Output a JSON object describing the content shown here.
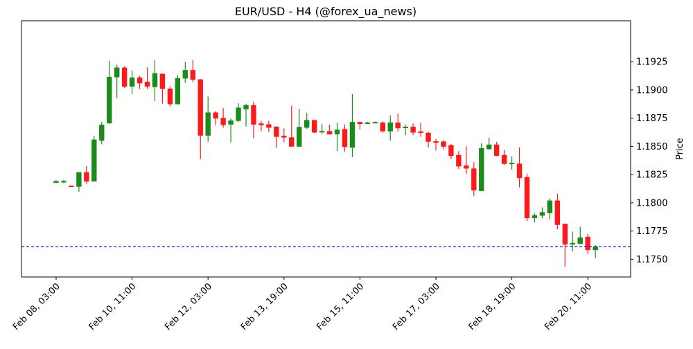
{
  "chart_data": {
    "type": "candlestick",
    "title": "EUR/USD - H4 (@forex_ua_news)",
    "xlabel": "",
    "ylabel": "Price",
    "ylim": [
      1.17343,
      1.19613
    ],
    "grid": false,
    "colors": {
      "up": "#1a8c1a",
      "down": "#ff1a1a",
      "reference_line": "#0000ff"
    },
    "reference_line": {
      "value": 1.17611,
      "style": "dashed"
    },
    "x_ticks": [
      {
        "index": 0,
        "label": "Feb 08, 03:00"
      },
      {
        "index": 10,
        "label": "Feb 10, 11:00"
      },
      {
        "index": 20,
        "label": "Feb 12, 03:00"
      },
      {
        "index": 30,
        "label": "Feb 13, 19:00"
      },
      {
        "index": 40,
        "label": "Feb 15, 11:00"
      },
      {
        "index": 50,
        "label": "Feb 17, 03:00"
      },
      {
        "index": 60,
        "label": "Feb 18, 19:00"
      },
      {
        "index": 70,
        "label": "Feb 20, 11:00"
      }
    ],
    "y_ticks": [
      {
        "value": 1.175,
        "label": "1.1750"
      },
      {
        "value": 1.1775,
        "label": "1.1775"
      },
      {
        "value": 1.18,
        "label": "1.1800"
      },
      {
        "value": 1.1825,
        "label": "1.1825"
      },
      {
        "value": 1.185,
        "label": "1.1850"
      },
      {
        "value": 1.1875,
        "label": "1.1875"
      },
      {
        "value": 1.19,
        "label": "1.1900"
      },
      {
        "value": 1.1925,
        "label": "1.1925"
      }
    ],
    "ohlc": [
      [
        1.18179,
        1.18201,
        1.18179,
        1.1819
      ],
      [
        1.18183,
        1.18204,
        1.18174,
        1.18191
      ],
      [
        1.1815,
        1.1815,
        1.18148,
        1.18148
      ],
      [
        1.18145,
        1.18273,
        1.18098,
        1.18269
      ],
      [
        1.18269,
        1.18327,
        1.18169,
        1.18191
      ],
      [
        1.18191,
        1.18594,
        1.18191,
        1.18558
      ],
      [
        1.18554,
        1.18716,
        1.18518,
        1.18689
      ],
      [
        1.18707,
        1.19259,
        1.18701,
        1.19114
      ],
      [
        1.19115,
        1.19223,
        1.18927,
        1.19196
      ],
      [
        1.19196,
        1.1921,
        1.19017,
        1.19032
      ],
      [
        1.19032,
        1.19174,
        1.18965,
        1.19108
      ],
      [
        1.19108,
        1.19125,
        1.19009,
        1.19061
      ],
      [
        1.1907,
        1.19201,
        1.19009,
        1.19032
      ],
      [
        1.19028,
        1.19265,
        1.189,
        1.19146
      ],
      [
        1.19141,
        1.19146,
        1.18878,
        1.19012
      ],
      [
        1.1901,
        1.1903,
        1.18856,
        1.18876
      ],
      [
        1.18876,
        1.1913,
        1.18872,
        1.19103
      ],
      [
        1.19104,
        1.1925,
        1.19063,
        1.19174
      ],
      [
        1.19174,
        1.19265,
        1.19069,
        1.19094
      ],
      [
        1.19092,
        1.19096,
        1.18387,
        1.18598
      ],
      [
        1.18598,
        1.18943,
        1.1854,
        1.18798
      ],
      [
        1.18798,
        1.18812,
        1.18687,
        1.1875
      ],
      [
        1.1875,
        1.18841,
        1.18665,
        1.18692
      ],
      [
        1.18696,
        1.18747,
        1.18536,
        1.18727
      ],
      [
        1.18728,
        1.18883,
        1.18715,
        1.18841
      ],
      [
        1.18832,
        1.18878,
        1.18676,
        1.18863
      ],
      [
        1.18863,
        1.18896,
        1.18573,
        1.18696
      ],
      [
        1.18701,
        1.18727,
        1.18633,
        1.1869
      ],
      [
        1.18694,
        1.18727,
        1.18627,
        1.18668
      ],
      [
        1.18672,
        1.18678,
        1.18487,
        1.18587
      ],
      [
        1.18592,
        1.1866,
        1.18536,
        1.18581
      ],
      [
        1.18578,
        1.18861,
        1.185,
        1.185
      ],
      [
        1.185,
        1.18834,
        1.18497,
        1.1867
      ],
      [
        1.18668,
        1.18796,
        1.18654,
        1.18731
      ],
      [
        1.18731,
        1.18731,
        1.18618,
        1.18625
      ],
      [
        1.18627,
        1.187,
        1.18611,
        1.18634
      ],
      [
        1.18633,
        1.18692,
        1.18605,
        1.18609
      ],
      [
        1.18609,
        1.18709,
        1.18458,
        1.18646
      ],
      [
        1.18651,
        1.18694,
        1.18453,
        1.18497
      ],
      [
        1.18491,
        1.18965,
        1.18405,
        1.18714
      ],
      [
        1.18714,
        1.18718,
        1.18651,
        1.18701
      ],
      [
        1.18701,
        1.18718,
        1.18701,
        1.18709
      ],
      [
        1.18707,
        1.1872,
        1.18707,
        1.18714
      ],
      [
        1.18709,
        1.1872,
        1.18623,
        1.18636
      ],
      [
        1.18636,
        1.18774,
        1.18551,
        1.1871
      ],
      [
        1.18709,
        1.18791,
        1.18633,
        1.18663
      ],
      [
        1.18665,
        1.18692,
        1.186,
        1.18672
      ],
      [
        1.18672,
        1.18703,
        1.186,
        1.18625
      ],
      [
        1.18631,
        1.18709,
        1.18585,
        1.18622
      ],
      [
        1.18618,
        1.18631,
        1.18491,
        1.18543
      ],
      [
        1.18543,
        1.18567,
        1.18464,
        1.18536
      ],
      [
        1.18541,
        1.18556,
        1.18475,
        1.185
      ],
      [
        1.18509,
        1.1852,
        1.18387,
        1.18418
      ],
      [
        1.18422,
        1.18458,
        1.183,
        1.18325
      ],
      [
        1.18329,
        1.18502,
        1.18256,
        1.18306
      ],
      [
        1.18302,
        1.1836,
        1.1806,
        1.18113
      ],
      [
        1.18107,
        1.18529,
        1.18107,
        1.18482
      ],
      [
        1.18478,
        1.18578,
        1.18472,
        1.18514
      ],
      [
        1.18514,
        1.18541,
        1.18414,
        1.18418
      ],
      [
        1.18422,
        1.18469,
        1.18338,
        1.18347
      ],
      [
        1.18347,
        1.18411,
        1.18295,
        1.18352
      ],
      [
        1.18345,
        1.18491,
        1.18137,
        1.18222
      ],
      [
        1.18225,
        1.18258,
        1.17838,
        1.17867
      ],
      [
        1.17867,
        1.17909,
        1.17826,
        1.17887
      ],
      [
        1.17889,
        1.1796,
        1.17864,
        1.17915
      ],
      [
        1.17911,
        1.1804,
        1.17855,
        1.18018
      ],
      [
        1.18018,
        1.18082,
        1.17766,
        1.17807
      ],
      [
        1.17811,
        1.17815,
        1.17434,
        1.17633
      ],
      [
        1.17633,
        1.17746,
        1.1757,
        1.17642
      ],
      [
        1.17638,
        1.17788,
        1.17638,
        1.17691
      ],
      [
        1.17697,
        1.17724,
        1.17548,
        1.17584
      ],
      [
        1.17584,
        1.17624,
        1.1751,
        1.17611
      ]
    ]
  }
}
